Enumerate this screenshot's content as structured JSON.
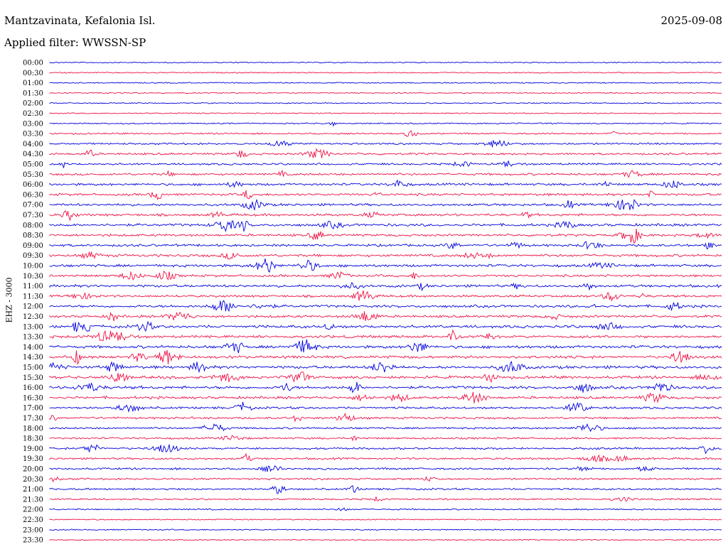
{
  "header": {
    "station": "Mantzavinata, Kefalonia Isl.",
    "date": "2025-09-08",
    "filter": "Applied filter: WWSSN-SP"
  },
  "chart_data": {
    "type": "line",
    "title": "Mantzavinata, Kefalonia Isl.",
    "ylabel": "EHZ - 3000",
    "colors": [
      "#0000dd",
      "#ee1144"
    ],
    "rows": [
      {
        "time": "00:00",
        "activity": 0.05
      },
      {
        "time": "00:30",
        "activity": 0.08
      },
      {
        "time": "01:00",
        "activity": 0.08
      },
      {
        "time": "01:30",
        "activity": 0.05
      },
      {
        "time": "02:00",
        "activity": 0.05
      },
      {
        "time": "02:30",
        "activity": 0.07
      },
      {
        "time": "03:00",
        "activity": 0.15
      },
      {
        "time": "03:30",
        "activity": 0.3
      },
      {
        "time": "04:00",
        "activity": 0.4
      },
      {
        "time": "04:30",
        "activity": 0.5
      },
      {
        "time": "05:00",
        "activity": 0.45
      },
      {
        "time": "05:30",
        "activity": 0.55
      },
      {
        "time": "06:00",
        "activity": 0.6
      },
      {
        "time": "06:30",
        "activity": 0.6
      },
      {
        "time": "07:00",
        "activity": 0.65
      },
      {
        "time": "07:30",
        "activity": 0.65
      },
      {
        "time": "08:00",
        "activity": 0.7
      },
      {
        "time": "08:30",
        "activity": 0.6
      },
      {
        "time": "09:00",
        "activity": 0.6
      },
      {
        "time": "09:30",
        "activity": 0.7
      },
      {
        "time": "10:00",
        "activity": 0.7
      },
      {
        "time": "10:30",
        "activity": 0.6
      },
      {
        "time": "11:00",
        "activity": 0.7
      },
      {
        "time": "11:30",
        "activity": 0.6
      },
      {
        "time": "12:00",
        "activity": 0.7
      },
      {
        "time": "12:30",
        "activity": 0.65
      },
      {
        "time": "13:00",
        "activity": 0.8
      },
      {
        "time": "13:30",
        "activity": 0.7
      },
      {
        "time": "14:00",
        "activity": 0.8
      },
      {
        "time": "14:30",
        "activity": 0.75
      },
      {
        "time": "15:00",
        "activity": 0.8
      },
      {
        "time": "15:30",
        "activity": 0.8
      },
      {
        "time": "16:00",
        "activity": 0.8
      },
      {
        "time": "16:30",
        "activity": 0.7
      },
      {
        "time": "17:00",
        "activity": 0.55
      },
      {
        "time": "17:30",
        "activity": 0.5
      },
      {
        "time": "18:00",
        "activity": 0.4
      },
      {
        "time": "18:30",
        "activity": 0.4
      },
      {
        "time": "19:00",
        "activity": 0.45
      },
      {
        "time": "19:30",
        "activity": 0.45
      },
      {
        "time": "20:00",
        "activity": 0.45
      },
      {
        "time": "20:30",
        "activity": 0.4
      },
      {
        "time": "21:00",
        "activity": 0.4
      },
      {
        "time": "21:30",
        "activity": 0.3
      },
      {
        "time": "22:00",
        "activity": 0.2
      },
      {
        "time": "22:30",
        "activity": 0.08
      },
      {
        "time": "23:00",
        "activity": 0.08
      },
      {
        "time": "23:30",
        "activity": 0.08
      }
    ]
  }
}
